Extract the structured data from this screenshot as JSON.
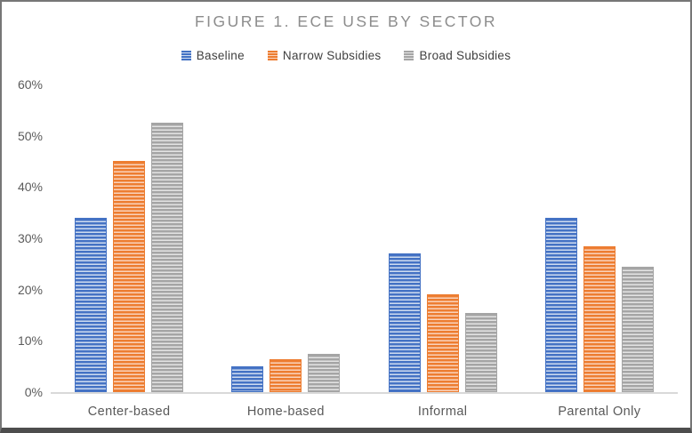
{
  "frame": {
    "background": "#FFFFFF",
    "border_color": "#767676",
    "border_bottom_color": "#4D4D4D"
  },
  "chart_data": {
    "type": "bar",
    "title": "FIGURE 1. ECE USE BY SECTOR",
    "title_color": "#8C8C8C",
    "categories": [
      "Center-based",
      "Home-based",
      "Informal",
      "Parental Only"
    ],
    "series": [
      {
        "name": "Baseline",
        "color": "#4472C4",
        "stripe_light": "#CFDCF0",
        "values": [
          34,
          5,
          27,
          34
        ]
      },
      {
        "name": "Narrow Subsidies",
        "color": "#ED7D31",
        "stripe_light": "#FAD3BC",
        "values": [
          45,
          6.5,
          19,
          28.5
        ]
      },
      {
        "name": "Broad Subsidies",
        "color": "#A5A5A5",
        "stripe_light": "#E4E4E4",
        "values": [
          52.5,
          7.5,
          15.5,
          24.5
        ]
      }
    ],
    "xlabel": "",
    "ylabel": "",
    "ylim": [
      0,
      60
    ],
    "yticks": [
      "0%",
      "10%",
      "20%",
      "30%",
      "40%",
      "50%",
      "60%"
    ],
    "grid": false,
    "bar_pattern": "horizontal-stripes",
    "legend_position": "top-center",
    "axis_line_color": "#D9D9D9",
    "tick_label_color": "#5B5B5B",
    "category_label_color": "#595959",
    "legend_text_color": "#3F3F3F"
  }
}
